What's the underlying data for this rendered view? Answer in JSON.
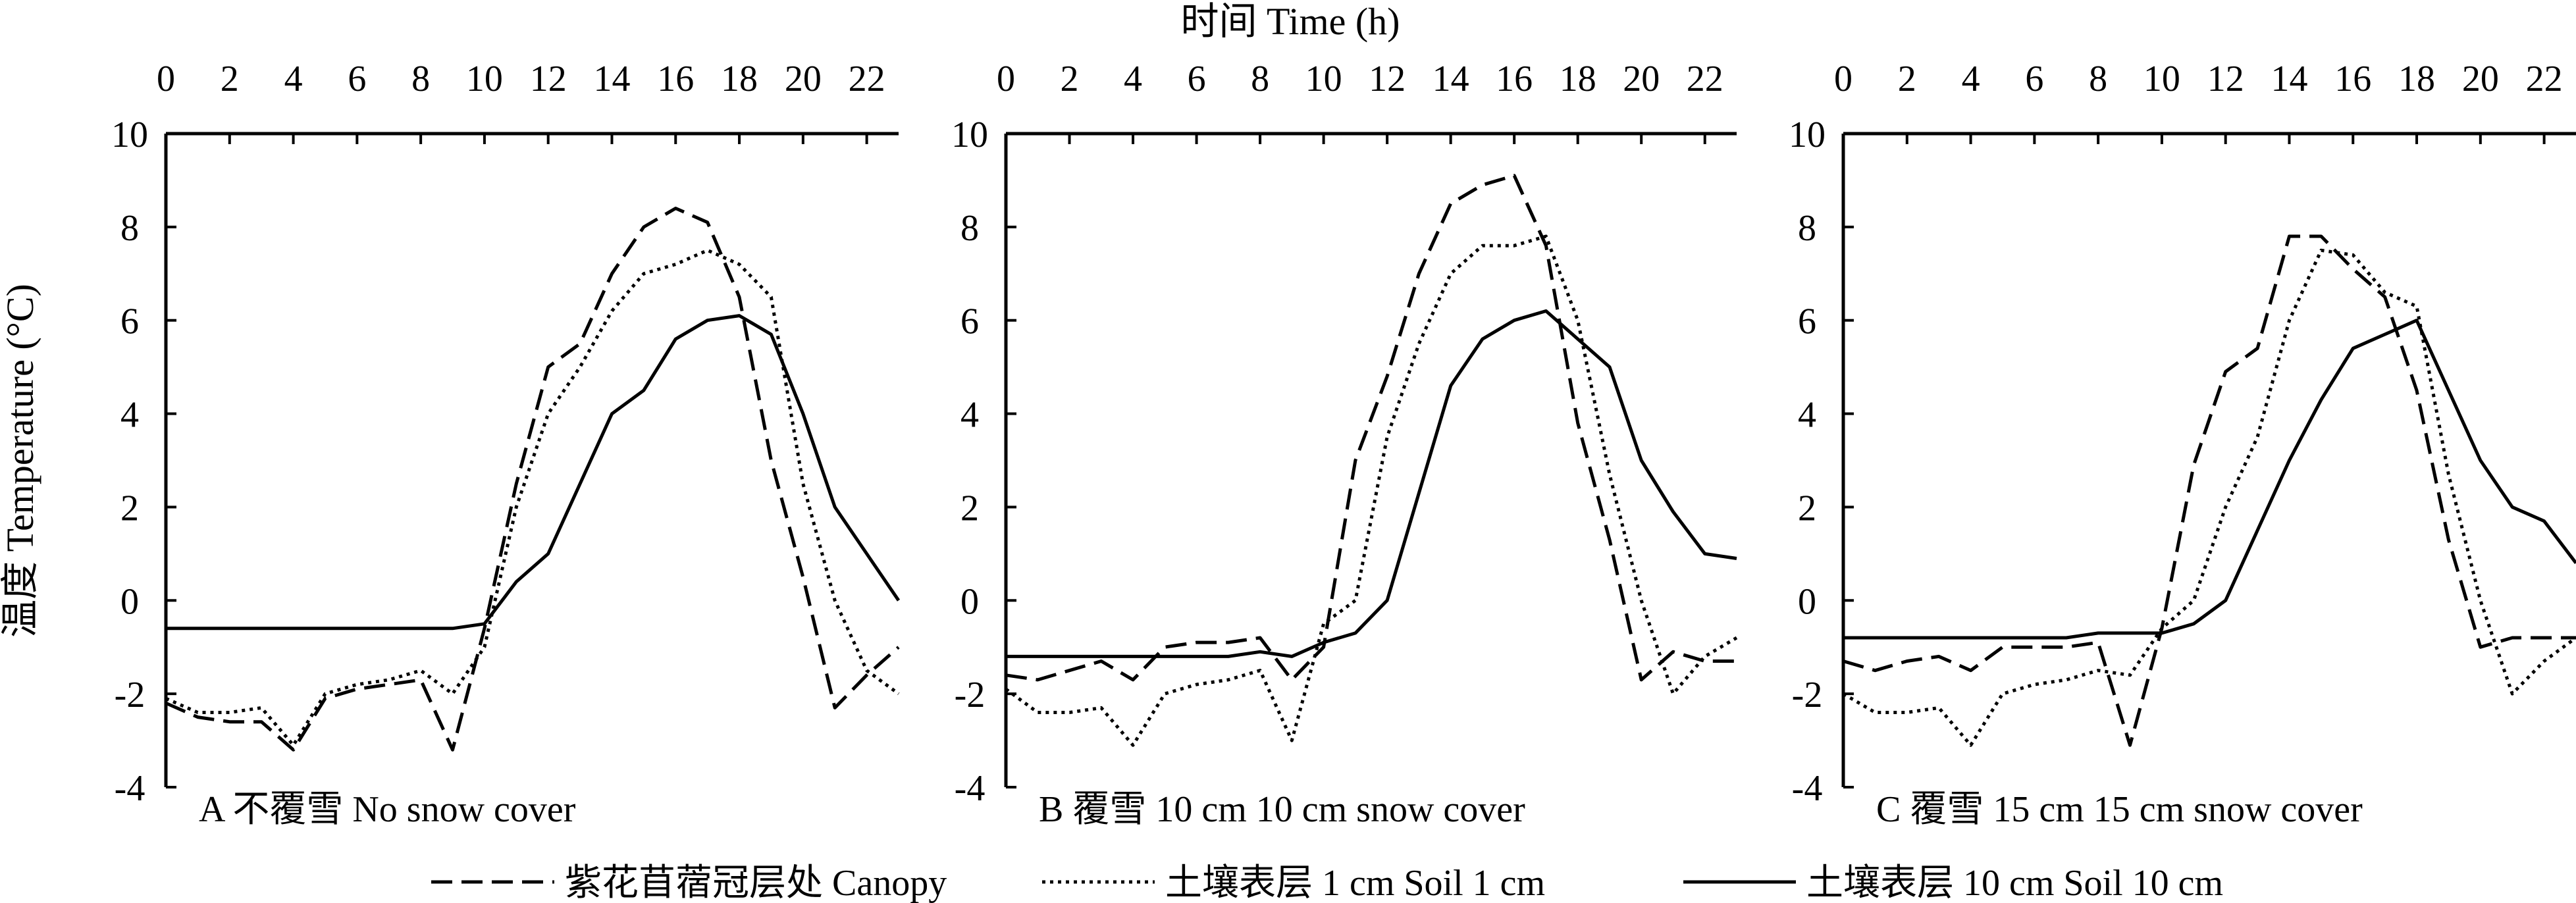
{
  "chart_data": {
    "type": "line",
    "top_axis_label": "时间 Time (h)",
    "ylabel": "温度 Temperature (°C)",
    "x": [
      0,
      1,
      2,
      3,
      4,
      5,
      6,
      7,
      8,
      9,
      10,
      11,
      12,
      13,
      14,
      15,
      16,
      17,
      18,
      19,
      20,
      21,
      22,
      23
    ],
    "xticks": [
      0,
      2,
      4,
      6,
      8,
      10,
      12,
      14,
      16,
      18,
      20,
      22
    ],
    "xlim": [
      0,
      23
    ],
    "ylim": [
      -4,
      10
    ],
    "yticks": [
      -4,
      -2,
      0,
      2,
      4,
      6,
      8,
      10
    ],
    "legend": {
      "placement": "bottom",
      "entries": [
        {
          "label": "紫花苜蓿冠层处 Canopy",
          "style": "dashed"
        },
        {
          "label": "土壤表层  1 cm Soil 1 cm",
          "style": "dotted"
        },
        {
          "label": "土壤表层  10 cm Soil 10 cm",
          "style": "solid"
        }
      ]
    },
    "panels": [
      {
        "label": "A  不覆雪 No snow cover",
        "series": [
          {
            "style": "dashed",
            "values": [
              -2.2,
              -2.5,
              -2.6,
              -2.6,
              -3.2,
              -2.1,
              -1.9,
              -1.8,
              -1.7,
              -3.2,
              -0.6,
              2.5,
              5.0,
              5.5,
              7.0,
              8.0,
              8.4,
              8.1,
              6.5,
              3.0,
              0.5,
              -2.3,
              -1.6,
              -1.0
            ]
          },
          {
            "style": "dotted",
            "values": [
              -2.1,
              -2.4,
              -2.4,
              -2.3,
              -3.1,
              -2.0,
              -1.8,
              -1.7,
              -1.5,
              -2.0,
              -1.0,
              2.0,
              4.0,
              5.0,
              6.2,
              7.0,
              7.2,
              7.5,
              7.2,
              6.5,
              2.5,
              0.0,
              -1.5,
              -2.0
            ]
          },
          {
            "style": "solid",
            "values": [
              -0.6,
              -0.6,
              -0.6,
              -0.6,
              -0.6,
              -0.6,
              -0.6,
              -0.6,
              -0.6,
              -0.6,
              -0.5,
              0.4,
              1.0,
              2.5,
              4.0,
              4.5,
              5.6,
              6.0,
              6.1,
              5.7,
              4.0,
              2.0,
              1.0,
              0.0
            ]
          }
        ]
      },
      {
        "label": "B  覆雪 10 cm 10 cm snow cover",
        "series": [
          {
            "style": "dashed",
            "values": [
              -1.6,
              -1.7,
              -1.5,
              -1.3,
              -1.7,
              -1.0,
              -0.9,
              -0.9,
              -0.8,
              -1.7,
              -1.0,
              3.0,
              4.8,
              7.0,
              8.5,
              8.9,
              9.1,
              7.6,
              3.8,
              1.3,
              -1.7,
              -1.1,
              -1.3,
              -1.3
            ]
          },
          {
            "style": "dotted",
            "values": [
              -1.9,
              -2.4,
              -2.4,
              -2.3,
              -3.1,
              -2.0,
              -1.8,
              -1.7,
              -1.5,
              -3.0,
              -0.5,
              0.0,
              3.5,
              5.5,
              7.0,
              7.6,
              7.6,
              7.8,
              6.0,
              2.7,
              0.0,
              -2.0,
              -1.2,
              -0.8
            ]
          },
          {
            "style": "solid",
            "values": [
              -1.2,
              -1.2,
              -1.2,
              -1.2,
              -1.2,
              -1.2,
              -1.2,
              -1.2,
              -1.1,
              -1.2,
              -0.9,
              -0.7,
              0.0,
              2.3,
              4.6,
              5.6,
              6.0,
              6.2,
              5.6,
              5.0,
              3.0,
              1.9,
              1.0,
              0.9
            ]
          }
        ]
      },
      {
        "label": "C  覆雪 15 cm 15 cm snow cover",
        "series": [
          {
            "style": "dashed",
            "values": [
              -1.3,
              -1.5,
              -1.3,
              -1.2,
              -1.5,
              -1.0,
              -1.0,
              -1.0,
              -0.9,
              -3.1,
              -0.6,
              2.9,
              4.9,
              5.4,
              7.8,
              7.8,
              7.1,
              6.5,
              4.5,
              1.3,
              -1.0,
              -0.8,
              -0.8,
              -0.8
            ]
          },
          {
            "style": "dotted",
            "values": [
              -2.0,
              -2.4,
              -2.4,
              -2.3,
              -3.1,
              -2.0,
              -1.8,
              -1.7,
              -1.5,
              -1.6,
              -0.6,
              0.0,
              2.0,
              3.5,
              6.0,
              7.5,
              7.4,
              6.6,
              6.3,
              2.7,
              0.0,
              -2.0,
              -1.3,
              -0.8
            ]
          },
          {
            "style": "solid",
            "values": [
              -0.8,
              -0.8,
              -0.8,
              -0.8,
              -0.8,
              -0.8,
              -0.8,
              -0.8,
              -0.7,
              -0.7,
              -0.7,
              -0.5,
              0.0,
              1.5,
              3.0,
              4.3,
              5.4,
              5.7,
              6.0,
              4.5,
              3.0,
              2.0,
              1.7,
              0.8
            ]
          }
        ]
      }
    ]
  }
}
